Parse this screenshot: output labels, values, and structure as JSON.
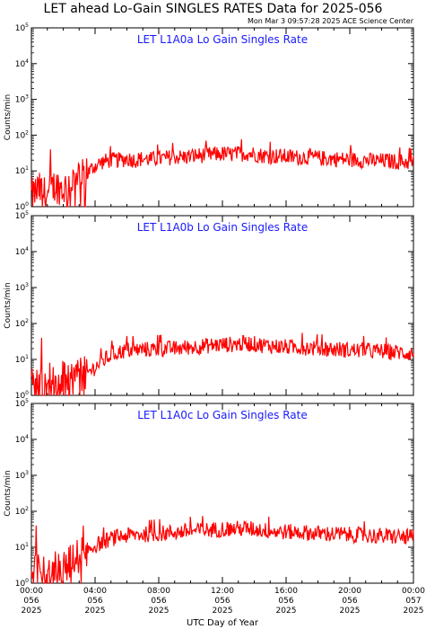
{
  "title": "LET ahead Lo-Gain SINGLES RATES Data for 2025-056",
  "timestamp": "Mon Mar  3 09:57:28 2025 ACE Science Center",
  "colors": {
    "series": "#ff0000",
    "panel_title": "#1a1aff",
    "axes": "#000000"
  },
  "chart_data": {
    "type": "line",
    "xlabel": "UTC Day of Year",
    "x_ticks": [
      {
        "hm": "00:00",
        "doy": "056",
        "year": "2025"
      },
      {
        "hm": "04:00",
        "doy": "056",
        "year": "2025"
      },
      {
        "hm": "08:00",
        "doy": "056",
        "year": "2025"
      },
      {
        "hm": "12:00",
        "doy": "056",
        "year": "2025"
      },
      {
        "hm": "16:00",
        "doy": "056",
        "year": "2025"
      },
      {
        "hm": "20:00",
        "doy": "056",
        "year": "2025"
      },
      {
        "hm": "00:00",
        "doy": "057",
        "year": "2025"
      }
    ],
    "xlim_hours": [
      0,
      24
    ],
    "y_scale": "log",
    "ylim": [
      1,
      100000
    ],
    "y_tick_labels": [
      {
        "base": "10",
        "exp": "0"
      },
      {
        "base": "10",
        "exp": "1"
      },
      {
        "base": "10",
        "exp": "2"
      },
      {
        "base": "10",
        "exp": "3"
      },
      {
        "base": "10",
        "exp": "4"
      },
      {
        "base": "10",
        "exp": "5"
      }
    ],
    "panels": [
      {
        "title": "LET L1A0a Lo Gain Singles Rate",
        "ylabel": "Counts/min",
        "x_hours": [
          0,
          0.5,
          1,
          1.5,
          2,
          2.5,
          3,
          3.5,
          4,
          4.5,
          5,
          5.5,
          6,
          6.5,
          7,
          7.5,
          8,
          8.5,
          9,
          9.5,
          10,
          10.5,
          11,
          11.5,
          12,
          12.5,
          13,
          13.5,
          14,
          14.5,
          15,
          15.5,
          16,
          16.5,
          17,
          17.5,
          18,
          18.5,
          19,
          19.5,
          20,
          20.5,
          21,
          21.5,
          22,
          22.5,
          23,
          23.5,
          24
        ],
        "values": [
          2,
          3,
          2,
          4,
          3,
          5,
          6,
          8,
          14,
          18,
          20,
          20,
          22,
          20,
          22,
          21,
          22,
          23,
          25,
          24,
          26,
          27,
          28,
          29,
          30,
          29,
          30,
          31,
          30,
          27,
          26,
          26,
          25,
          24,
          24,
          25,
          23,
          22,
          22,
          21,
          21,
          20,
          20,
          19,
          19,
          19,
          18,
          18,
          17
        ]
      },
      {
        "title": "LET L1A0b Lo Gain Singles Rate",
        "ylabel": "Counts/min",
        "x_hours": [
          0,
          0.5,
          1,
          1.5,
          2,
          2.5,
          3,
          3.5,
          4,
          4.5,
          5,
          5.5,
          6,
          6.5,
          7,
          7.5,
          8,
          8.5,
          9,
          9.5,
          10,
          10.5,
          11,
          11.5,
          12,
          12.5,
          13,
          13.5,
          14,
          14.5,
          15,
          15.5,
          16,
          16.5,
          17,
          17.5,
          18,
          18.5,
          19,
          19.5,
          20,
          20.5,
          21,
          21.5,
          22,
          22.5,
          23,
          23.5,
          24
        ],
        "values": [
          2,
          2,
          3,
          2,
          3,
          3,
          4,
          4,
          6,
          9,
          13,
          16,
          18,
          18,
          19,
          19,
          19,
          20,
          20,
          21,
          22,
          23,
          24,
          25,
          26,
          26,
          27,
          28,
          27,
          25,
          24,
          23,
          22,
          22,
          22,
          21,
          20,
          20,
          19,
          19,
          18,
          18,
          18,
          17,
          17,
          16,
          16,
          15,
          15
        ]
      },
      {
        "title": "LET L1A0c Lo Gain Singles Rate",
        "ylabel": "Counts/min",
        "x_hours": [
          0,
          0.5,
          1,
          1.5,
          2,
          2.5,
          3,
          3.5,
          4,
          4.5,
          5,
          5.5,
          6,
          6.5,
          7,
          7.5,
          8,
          8.5,
          9,
          9.5,
          10,
          10.5,
          11,
          11.5,
          12,
          12.5,
          13,
          13.5,
          14,
          14.5,
          15,
          15.5,
          16,
          16.5,
          17,
          17.5,
          18,
          18.5,
          19,
          19.5,
          20,
          20.5,
          21,
          21.5,
          22,
          22.5,
          23,
          23.5,
          24
        ],
        "values": [
          2,
          2,
          2,
          3,
          3,
          4,
          6,
          8,
          11,
          14,
          17,
          20,
          21,
          22,
          23,
          23,
          24,
          25,
          26,
          27,
          28,
          29,
          30,
          31,
          32,
          32,
          33,
          33,
          32,
          30,
          28,
          27,
          27,
          26,
          26,
          25,
          24,
          24,
          23,
          23,
          22,
          22,
          21,
          21,
          20,
          20,
          20,
          19,
          19
        ]
      }
    ]
  }
}
